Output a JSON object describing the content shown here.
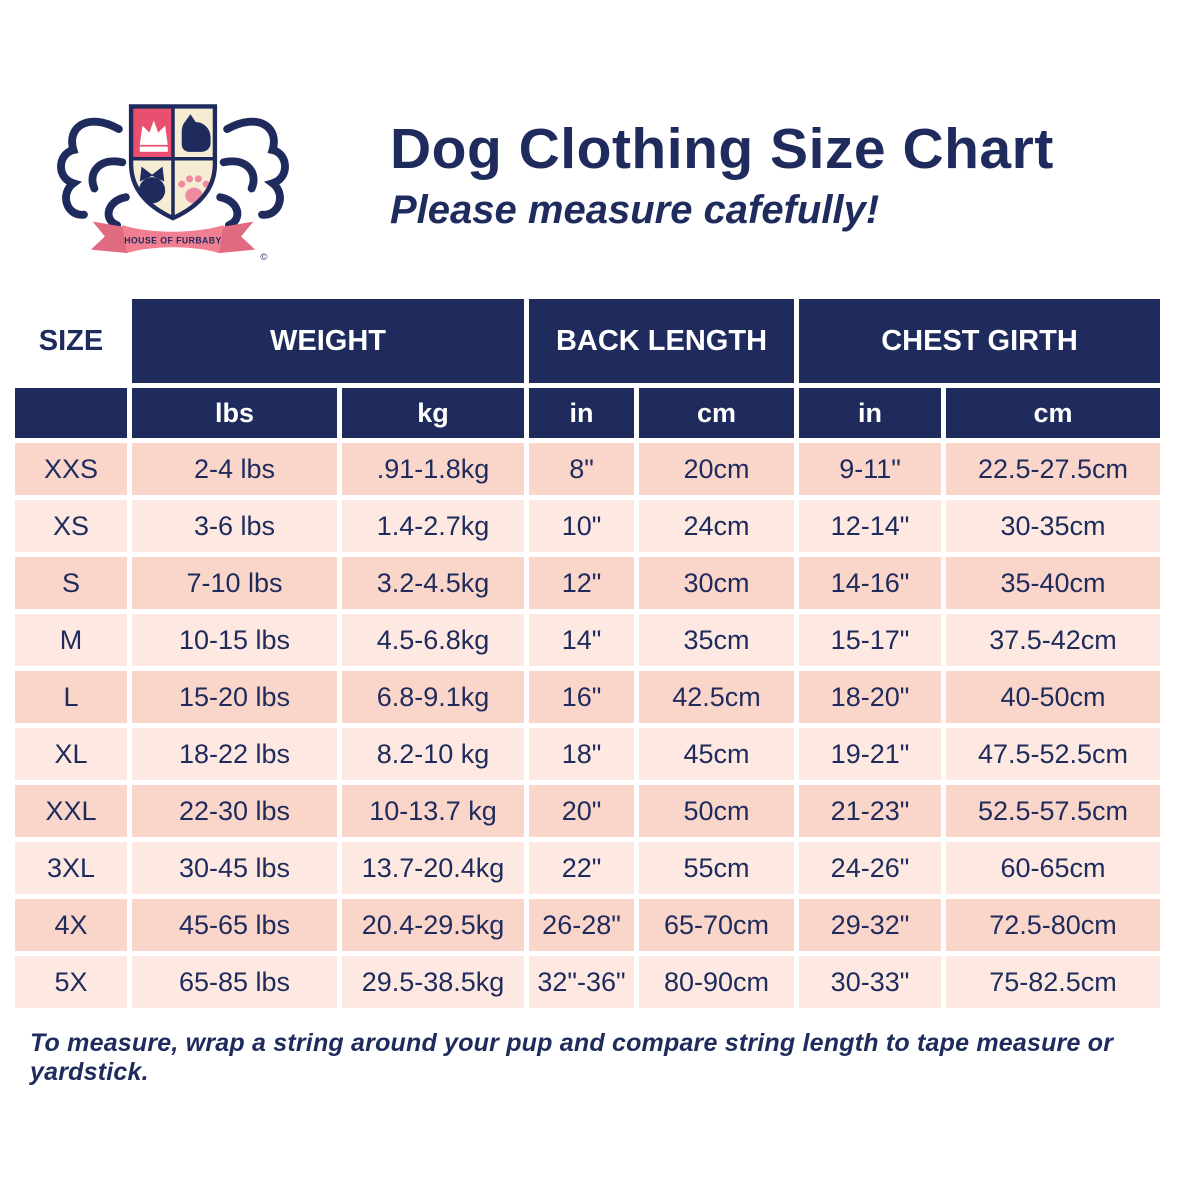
{
  "logo": {
    "banner_text": "HOUSE OF FURBABY",
    "copyright_symbol": "©"
  },
  "header": {
    "title": "Dog Clothing Size Chart",
    "subtitle": "Please measure cafefully!"
  },
  "chart_data": {
    "type": "table",
    "title": "Dog Clothing Size Chart",
    "column_groups": [
      {
        "label": "SIZE",
        "sub": []
      },
      {
        "label": "WEIGHT",
        "sub": [
          "lbs",
          "kg"
        ]
      },
      {
        "label": "BACK LENGTH",
        "sub": [
          "in",
          "cm"
        ]
      },
      {
        "label": "CHEST GIRTH",
        "sub": [
          "in",
          "cm"
        ]
      }
    ],
    "rows": [
      [
        "XXS",
        "2-4 lbs",
        ".91-1.8kg",
        "8\"",
        "20cm",
        "9-11\"",
        "22.5-27.5cm"
      ],
      [
        "XS",
        "3-6 lbs",
        "1.4-2.7kg",
        "10\"",
        "24cm",
        "12-14\"",
        "30-35cm"
      ],
      [
        "S",
        "7-10 lbs",
        "3.2-4.5kg",
        "12\"",
        "30cm",
        "14-16\"",
        "35-40cm"
      ],
      [
        "M",
        "10-15 lbs",
        "4.5-6.8kg",
        "14\"",
        "35cm",
        "15-17\"",
        "37.5-42cm"
      ],
      [
        "L",
        "15-20 lbs",
        "6.8-9.1kg",
        "16\"",
        "42.5cm",
        "18-20\"",
        "40-50cm"
      ],
      [
        "XL",
        "18-22 lbs",
        "8.2-10 kg",
        "18\"",
        "45cm",
        "19-21\"",
        "47.5-52.5cm"
      ],
      [
        "XXL",
        "22-30 lbs",
        "10-13.7 kg",
        "20\"",
        "50cm",
        "21-23\"",
        "52.5-57.5cm"
      ],
      [
        "3XL",
        "30-45 lbs",
        "13.7-20.4kg",
        "22\"",
        "55cm",
        "24-26\"",
        "60-65cm"
      ],
      [
        "4X",
        "45-65 lbs",
        "20.4-29.5kg",
        "26-28\"",
        "65-70cm",
        "29-32\"",
        "72.5-80cm"
      ],
      [
        "5X",
        "65-85 lbs",
        "29.5-38.5kg",
        "32\"-36\"",
        "80-90cm",
        "30-33\"",
        "75-82.5cm"
      ]
    ]
  },
  "footer": {
    "note": "To measure, wrap a string around your pup and compare string length to tape measure or yardstick."
  },
  "colors": {
    "navy": "#1e2b5c",
    "row_pink_dark": "#fad6ca",
    "row_pink_light": "#fde9e1",
    "crest_red": "#e94f6e",
    "crest_cream": "#f6ecd4",
    "ribbon_pink": "#f07f92"
  }
}
